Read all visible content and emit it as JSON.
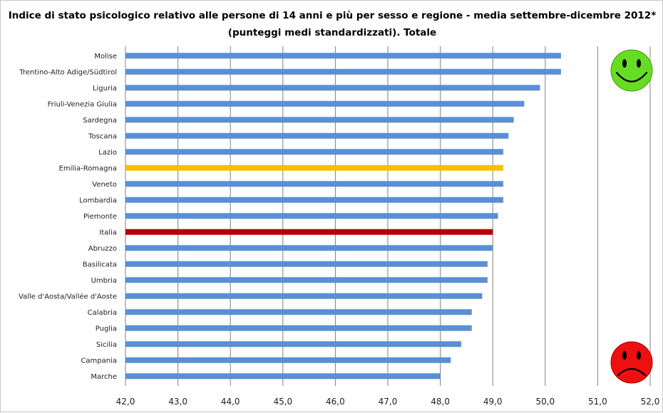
{
  "chart_data": {
    "type": "bar",
    "orientation": "horizontal",
    "title": "Indice di stato psicologico relativo alle persone di 14 anni e più per sesso e regione - media settembre-dicembre 2012*",
    "subtitle": "(punteggi medi standardizzati).  Totale",
    "categories": [
      "Molise",
      "Trentino-Alto Adige/Südtirol",
      "Liguria",
      "Friuli-Venezia Giulia",
      "Sardegna",
      "Toscana",
      "Lazio",
      "Emilia-Romagna",
      "Veneto",
      "Lombardia",
      "Piemonte",
      "Italia",
      "Abruzzo",
      "Basilicata",
      "Umbria",
      "Valle d'Aosta/Vallée d'Aoste",
      "Calabria",
      "Puglia",
      "Sicilia",
      "Campania",
      "Marche"
    ],
    "values": [
      50.3,
      50.3,
      49.9,
      49.6,
      49.4,
      49.3,
      49.2,
      49.2,
      49.2,
      49.2,
      49.1,
      49.0,
      49.0,
      48.9,
      48.9,
      48.8,
      48.6,
      48.6,
      48.4,
      48.2,
      48.0
    ],
    "xlim": [
      42.0,
      52.0
    ],
    "ticks": [
      42.0,
      43.0,
      44.0,
      45.0,
      46.0,
      47.0,
      48.0,
      49.0,
      50.0,
      51.0,
      52.0
    ],
    "tick_labels": [
      "42,0",
      "43,0",
      "44,0",
      "45,0",
      "46,0",
      "47,0",
      "48,0",
      "49,0",
      "50,0",
      "51,0",
      "52,0"
    ],
    "grid": "vertical",
    "colors": {
      "default": "#5b8fd4",
      "highlight": "#f5c000",
      "total": "#b80000",
      "gridline": "#808080"
    },
    "bar_colors": {
      "Emilia-Romagna": "highlight",
      "Italia": "total"
    },
    "icons": {
      "top_right": "happy-face-icon",
      "bottom_right": "sad-face-icon"
    }
  }
}
